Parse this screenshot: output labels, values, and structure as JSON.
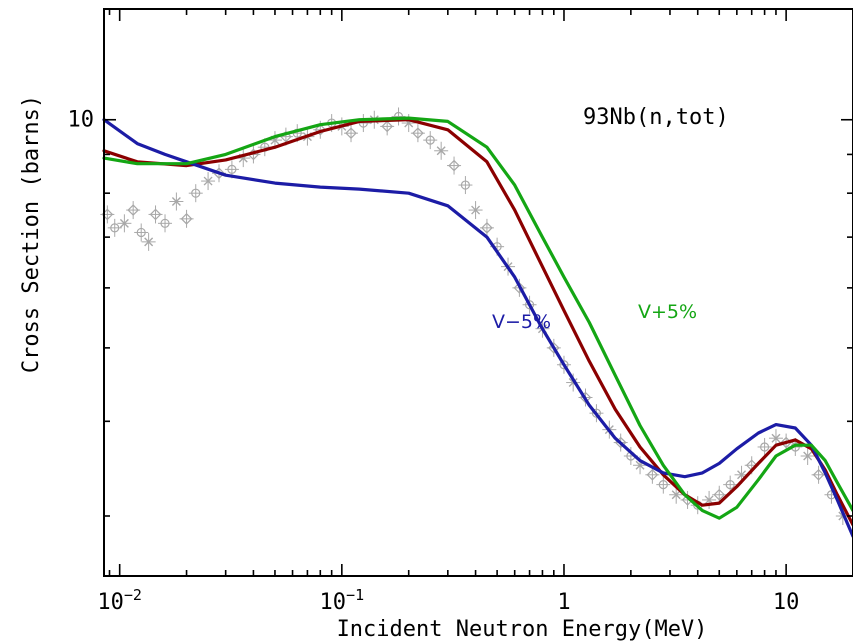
{
  "chart_data": {
    "type": "line",
    "title": "",
    "annotation": "93Nb(n,tot)",
    "xlabel": "Incident Neutron Energy(MeV)",
    "ylabel": "Cross Section (barns)",
    "x_scale": "log",
    "y_scale": "log",
    "xlim": [
      0.0085,
      20
    ],
    "ylim": [
      2.5,
      14
    ],
    "x_ticks": [
      {
        "value": 0.01,
        "base": "10",
        "exp": "−2"
      },
      {
        "value": 0.1,
        "base": "10",
        "exp": "−1"
      },
      {
        "value": 1,
        "base": "1",
        "exp": ""
      },
      {
        "value": 10,
        "base": "10",
        "exp": ""
      }
    ],
    "y_ticks": [
      {
        "value": 10,
        "label": "10"
      }
    ],
    "grid": false,
    "series": [
      {
        "name": "",
        "color": "#8b0000",
        "x": [
          0.0085,
          0.012,
          0.02,
          0.03,
          0.05,
          0.08,
          0.12,
          0.2,
          0.3,
          0.45,
          0.6,
          0.8,
          1.0,
          1.3,
          1.7,
          2.2,
          2.8,
          3.5,
          4.2,
          5.0,
          6.0,
          7.5,
          9.0,
          11,
          13,
          15,
          17,
          20
        ],
        "y": [
          9.1,
          8.8,
          8.7,
          8.85,
          9.2,
          9.65,
          9.95,
          10.0,
          9.7,
          8.8,
          7.6,
          6.4,
          5.6,
          4.8,
          4.15,
          3.7,
          3.4,
          3.2,
          3.1,
          3.12,
          3.28,
          3.52,
          3.72,
          3.78,
          3.68,
          3.45,
          3.2,
          2.92
        ]
      },
      {
        "name": "V−5%",
        "color": "#1c1ca6",
        "x": [
          0.0085,
          0.012,
          0.016,
          0.02,
          0.03,
          0.05,
          0.08,
          0.12,
          0.2,
          0.3,
          0.45,
          0.6,
          0.8,
          1.0,
          1.3,
          1.7,
          2.2,
          2.8,
          3.5,
          4.2,
          5.0,
          6.0,
          7.5,
          9.0,
          11,
          13,
          15,
          17,
          20
        ],
        "y": [
          10.0,
          9.3,
          9.0,
          8.8,
          8.45,
          8.25,
          8.15,
          8.1,
          8.0,
          7.7,
          7.0,
          6.2,
          5.3,
          4.75,
          4.2,
          3.8,
          3.55,
          3.42,
          3.38,
          3.42,
          3.52,
          3.68,
          3.86,
          3.96,
          3.92,
          3.72,
          3.42,
          3.15,
          2.82
        ]
      },
      {
        "name": "V+5%",
        "color": "#14a614",
        "x": [
          0.0085,
          0.012,
          0.02,
          0.03,
          0.05,
          0.08,
          0.12,
          0.2,
          0.3,
          0.45,
          0.6,
          0.8,
          1.0,
          1.3,
          1.7,
          2.2,
          2.8,
          3.5,
          4.2,
          5.0,
          6.0,
          7.5,
          9.0,
          11,
          13,
          15,
          17,
          20
        ],
        "y": [
          8.9,
          8.75,
          8.75,
          9.0,
          9.5,
          9.85,
          10.0,
          10.05,
          9.95,
          9.2,
          8.2,
          7.0,
          6.2,
          5.4,
          4.6,
          3.95,
          3.5,
          3.2,
          3.05,
          2.98,
          3.08,
          3.35,
          3.6,
          3.72,
          3.72,
          3.55,
          3.32,
          3.05
        ]
      }
    ],
    "experimental_data": {
      "color": "#a8a8a8",
      "x": [
        0.0088,
        0.0095,
        0.0105,
        0.0115,
        0.0125,
        0.0135,
        0.0145,
        0.016,
        0.018,
        0.02,
        0.022,
        0.025,
        0.028,
        0.032,
        0.036,
        0.04,
        0.045,
        0.05,
        0.056,
        0.063,
        0.07,
        0.08,
        0.09,
        0.1,
        0.11,
        0.125,
        0.14,
        0.16,
        0.18,
        0.2,
        0.22,
        0.25,
        0.28,
        0.32,
        0.36,
        0.4,
        0.45,
        0.5,
        0.56,
        0.63,
        0.7,
        0.8,
        0.9,
        1.0,
        1.1,
        1.25,
        1.4,
        1.6,
        1.8,
        2.0,
        2.2,
        2.5,
        2.8,
        3.2,
        3.6,
        4.0,
        4.5,
        5.0,
        5.6,
        6.3,
        7.0,
        8.0,
        9.0,
        10.0,
        11.0,
        12.5,
        14.0,
        16.0,
        18.0
      ],
      "y": [
        7.5,
        7.2,
        7.3,
        7.6,
        7.1,
        6.9,
        7.5,
        7.3,
        7.8,
        7.4,
        8.0,
        8.3,
        8.5,
        8.6,
        8.9,
        9.0,
        9.2,
        9.4,
        9.5,
        9.6,
        9.5,
        9.7,
        9.9,
        9.8,
        9.6,
        9.9,
        10.0,
        9.8,
        10.1,
        9.9,
        9.6,
        9.4,
        9.1,
        8.7,
        8.2,
        7.6,
        7.2,
        6.8,
        6.4,
        6.0,
        5.7,
        5.3,
        5.0,
        4.75,
        4.5,
        4.3,
        4.1,
        3.9,
        3.75,
        3.6,
        3.5,
        3.4,
        3.3,
        3.2,
        3.15,
        3.1,
        3.15,
        3.2,
        3.3,
        3.4,
        3.5,
        3.7,
        3.8,
        3.75,
        3.7,
        3.6,
        3.4,
        3.2,
        3.0
      ]
    },
    "labels": [
      {
        "text": "V−5%",
        "series": "V−5%"
      },
      {
        "text": "V+5%",
        "series": "V+5%"
      }
    ]
  }
}
